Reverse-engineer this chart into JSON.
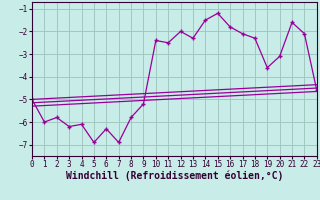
{
  "title": "",
  "xlabel": "Windchill (Refroidissement éolien,°C)",
  "bg_color": "#c8ece8",
  "grid_color": "#a0c8c0",
  "line_color": "#990099",
  "x": [
    0,
    1,
    2,
    3,
    4,
    5,
    6,
    7,
    8,
    9,
    10,
    11,
    12,
    13,
    14,
    15,
    16,
    17,
    18,
    19,
    20,
    21,
    22,
    23
  ],
  "y_main": [
    -5.0,
    -6.0,
    -5.8,
    -6.2,
    -6.1,
    -6.9,
    -6.3,
    -6.9,
    -5.8,
    -5.2,
    -2.4,
    -2.5,
    -2.0,
    -2.3,
    -1.5,
    -1.2,
    -1.8,
    -2.1,
    -2.3,
    -3.6,
    -3.1,
    -1.6,
    -2.1,
    -4.6
  ],
  "trend1_x": [
    0,
    23
  ],
  "trend1_y": [
    -5.0,
    -4.35
  ],
  "trend2_x": [
    0,
    23
  ],
  "trend2_y": [
    -5.15,
    -4.5
  ],
  "trend3_x": [
    0,
    23
  ],
  "trend3_y": [
    -5.3,
    -4.65
  ],
  "xlim": [
    0,
    23
  ],
  "ylim": [
    -7.5,
    -0.7
  ],
  "yticks": [
    -1,
    -2,
    -3,
    -4,
    -5,
    -6,
    -7
  ],
  "xticks": [
    0,
    1,
    2,
    3,
    4,
    5,
    6,
    7,
    8,
    9,
    10,
    11,
    12,
    13,
    14,
    15,
    16,
    17,
    18,
    19,
    20,
    21,
    22,
    23
  ],
  "tick_fontsize": 5.5,
  "xlabel_fontsize": 7.0,
  "spine_color": "#330033",
  "tick_color": "#330033"
}
